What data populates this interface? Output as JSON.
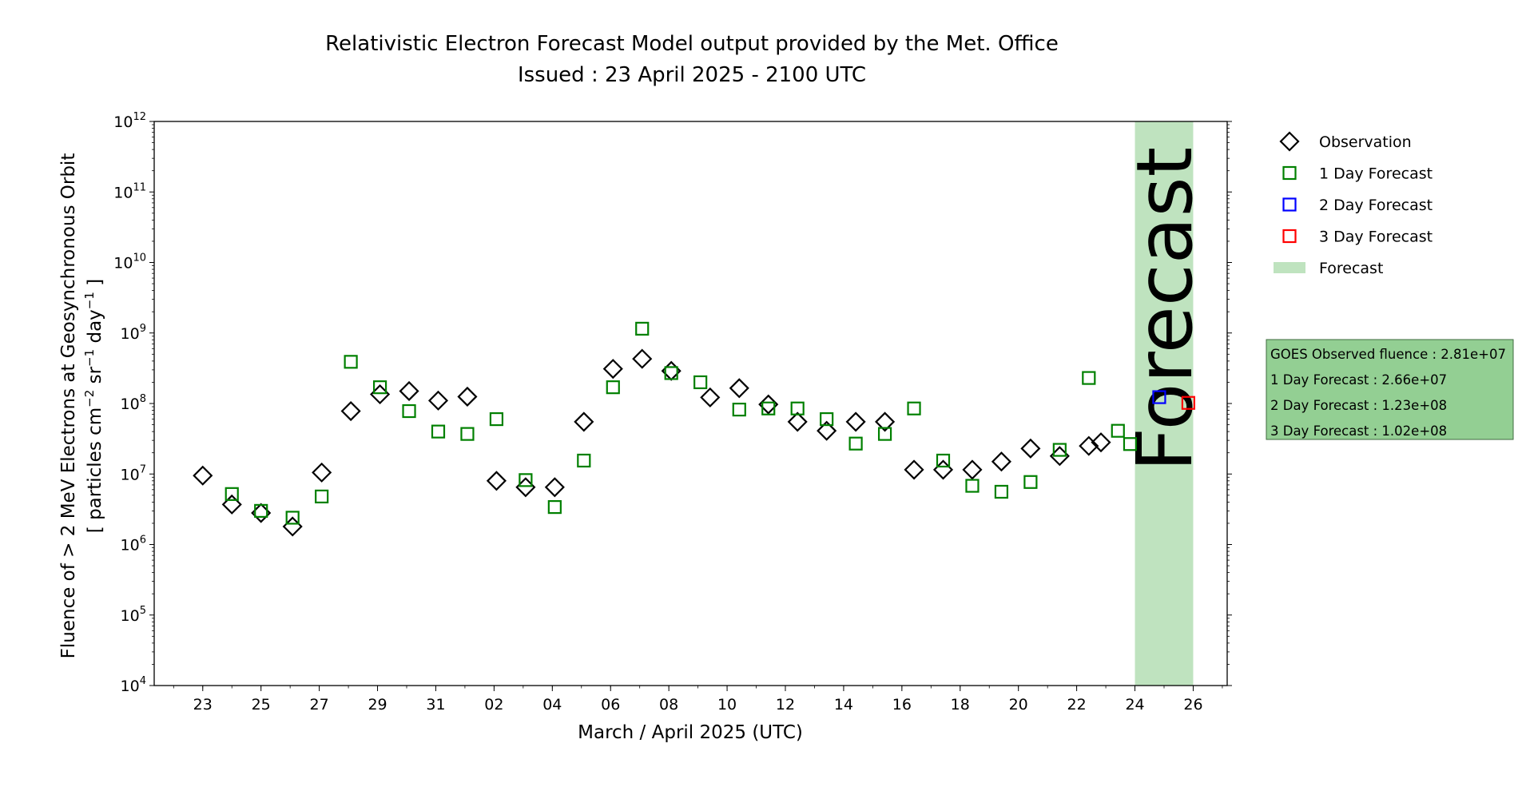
{
  "chart_data": {
    "type": "scatter",
    "title": "Relativistic Electron Forecast Model output provided by the Met. Office",
    "subtitle": "Issued : 23 April 2025 - 2100 UTC",
    "xlabel": "March / April 2025 (UTC)",
    "ylabel_line1": "Fluence of > 2 MeV Electrons at Geosynchronous Orbit",
    "ylabel_line2_parts": [
      "[ particles cm",
      "−2",
      " sr",
      "−1",
      " day",
      "−1",
      " ]"
    ],
    "y_scale": "log",
    "ylim": [
      10000,
      1000000000000
    ],
    "xlim": [
      "2025-03-21T08:00",
      "2025-04-27T04:00"
    ],
    "y_ticks": [
      {
        "base": "10",
        "exp": "4",
        "value": 10000
      },
      {
        "base": "10",
        "exp": "5",
        "value": 100000
      },
      {
        "base": "10",
        "exp": "6",
        "value": 1000000
      },
      {
        "base": "10",
        "exp": "7",
        "value": 10000000
      },
      {
        "base": "10",
        "exp": "8",
        "value": 100000000
      },
      {
        "base": "10",
        "exp": "9",
        "value": 1000000000
      },
      {
        "base": "10",
        "exp": "10",
        "value": 10000000000
      },
      {
        "base": "10",
        "exp": "11",
        "value": 100000000000
      },
      {
        "base": "10",
        "exp": "12",
        "value": 1000000000000
      }
    ],
    "x_ticks": [
      {
        "label": "23",
        "date": "2025-03-23"
      },
      {
        "label": "25",
        "date": "2025-03-25"
      },
      {
        "label": "27",
        "date": "2025-03-27"
      },
      {
        "label": "29",
        "date": "2025-03-29"
      },
      {
        "label": "31",
        "date": "2025-03-31"
      },
      {
        "label": "02",
        "date": "2025-04-02"
      },
      {
        "label": "04",
        "date": "2025-04-04"
      },
      {
        "label": "06",
        "date": "2025-04-06"
      },
      {
        "label": "08",
        "date": "2025-04-08"
      },
      {
        "label": "10",
        "date": "2025-04-10"
      },
      {
        "label": "12",
        "date": "2025-04-12"
      },
      {
        "label": "14",
        "date": "2025-04-14"
      },
      {
        "label": "16",
        "date": "2025-04-16"
      },
      {
        "label": "18",
        "date": "2025-04-18"
      },
      {
        "label": "20",
        "date": "2025-04-20"
      },
      {
        "label": "22",
        "date": "2025-04-22"
      },
      {
        "label": "24",
        "date": "2025-04-24"
      },
      {
        "label": "26",
        "date": "2025-04-26"
      }
    ],
    "forecast_band": {
      "label": "Forecast",
      "start": "2025-04-24T00:00",
      "end": "2025-04-26T00:00",
      "color": "#bfe3bf"
    },
    "series": [
      {
        "name": "Observation",
        "marker": "diamond",
        "color": "#000000",
        "points": [
          [
            "2025-03-23T00:00",
            9500000
          ],
          [
            "2025-03-24T00:00",
            3700000
          ],
          [
            "2025-03-25T00:00",
            2800000
          ],
          [
            "2025-03-26T02:00",
            1800000
          ],
          [
            "2025-03-27T02:00",
            10500000
          ],
          [
            "2025-03-28T02:00",
            78000000
          ],
          [
            "2025-03-29T02:00",
            135000000
          ],
          [
            "2025-03-30T02:00",
            150000000
          ],
          [
            "2025-03-31T02:00",
            110000000
          ],
          [
            "2025-04-01T02:00",
            125000000
          ],
          [
            "2025-04-02T02:00",
            8000000
          ],
          [
            "2025-04-03T02:00",
            6500000
          ],
          [
            "2025-04-04T02:00",
            6500000
          ],
          [
            "2025-04-05T02:00",
            55000000
          ],
          [
            "2025-04-06T02:00",
            310000000
          ],
          [
            "2025-04-07T02:00",
            430000000
          ],
          [
            "2025-04-08T02:00",
            290000000
          ],
          [
            "2025-04-09T10:00",
            122000000
          ],
          [
            "2025-04-10T10:00",
            165000000
          ],
          [
            "2025-04-11T10:00",
            97000000
          ],
          [
            "2025-04-12T10:00",
            55000000
          ],
          [
            "2025-04-13T10:00",
            41000000
          ],
          [
            "2025-04-14T10:00",
            55000000
          ],
          [
            "2025-04-15T10:00",
            55000000
          ],
          [
            "2025-04-16T10:00",
            11500000
          ],
          [
            "2025-04-17T10:00",
            11500000
          ],
          [
            "2025-04-18T10:00",
            11500000
          ],
          [
            "2025-04-19T10:00",
            15000000
          ],
          [
            "2025-04-20T10:00",
            23000000
          ],
          [
            "2025-04-21T10:00",
            18000000
          ],
          [
            "2025-04-22T10:00",
            25000000
          ],
          [
            "2025-04-22T20:00",
            28100000
          ]
        ]
      },
      {
        "name": "1 Day Forecast",
        "marker": "square",
        "color": "#008000",
        "points": [
          [
            "2025-03-24T00:00",
            5200000
          ],
          [
            "2025-03-25T00:00",
            3000000
          ],
          [
            "2025-03-26T02:00",
            2400000
          ],
          [
            "2025-03-27T02:00",
            4800000
          ],
          [
            "2025-03-28T02:00",
            390000000
          ],
          [
            "2025-03-29T02:00",
            170000000
          ],
          [
            "2025-03-30T02:00",
            78000000
          ],
          [
            "2025-03-31T02:00",
            40000000
          ],
          [
            "2025-04-01T02:00",
            37000000
          ],
          [
            "2025-04-02T02:00",
            60000000
          ],
          [
            "2025-04-03T02:00",
            8200000
          ],
          [
            "2025-04-04T02:00",
            3400000
          ],
          [
            "2025-04-05T02:00",
            15500000
          ],
          [
            "2025-04-06T02:00",
            170000000
          ],
          [
            "2025-04-07T02:00",
            1150000000
          ],
          [
            "2025-04-08T02:00",
            270000000
          ],
          [
            "2025-04-09T02:00",
            200000000
          ],
          [
            "2025-04-10T10:00",
            82000000
          ],
          [
            "2025-04-11T10:00",
            85000000
          ],
          [
            "2025-04-12T10:00",
            85000000
          ],
          [
            "2025-04-13T10:00",
            60000000
          ],
          [
            "2025-04-14T10:00",
            27000000
          ],
          [
            "2025-04-15T10:00",
            37000000
          ],
          [
            "2025-04-16T10:00",
            85000000
          ],
          [
            "2025-04-17T10:00",
            15500000
          ],
          [
            "2025-04-18T10:00",
            6800000
          ],
          [
            "2025-04-19T10:00",
            5600000
          ],
          [
            "2025-04-20T10:00",
            7700000
          ],
          [
            "2025-04-21T10:00",
            22000000
          ],
          [
            "2025-04-22T10:00",
            230000000
          ],
          [
            "2025-04-23T10:00",
            41000000
          ],
          [
            "2025-04-23T20:00",
            26600000
          ]
        ]
      },
      {
        "name": "2 Day Forecast",
        "marker": "square",
        "color": "#0000ff",
        "points": [
          [
            "2025-04-24T20:00",
            123000000
          ]
        ]
      },
      {
        "name": "3 Day Forecast",
        "marker": "square",
        "color": "#ff0000",
        "points": [
          [
            "2025-04-25T20:00",
            102000000
          ]
        ]
      }
    ],
    "legend": {
      "placement": "right-top",
      "items": [
        {
          "label": "Observation",
          "marker": "diamond",
          "color": "#000000"
        },
        {
          "label": "1 Day Forecast",
          "marker": "square",
          "color": "#008000"
        },
        {
          "label": "2 Day Forecast",
          "marker": "square",
          "color": "#0000ff"
        },
        {
          "label": "3 Day Forecast",
          "marker": "square",
          "color": "#ff0000"
        },
        {
          "label": "Forecast",
          "marker": "patch",
          "color": "#bfe3bf"
        }
      ]
    },
    "info_box": {
      "background": "#93cf93",
      "lines": [
        "GOES Observed fluence : 2.81e+07",
        "1 Day Forecast : 2.66e+07",
        "2 Day Forecast : 1.23e+08",
        "3 Day Forecast : 1.02e+08"
      ]
    }
  }
}
